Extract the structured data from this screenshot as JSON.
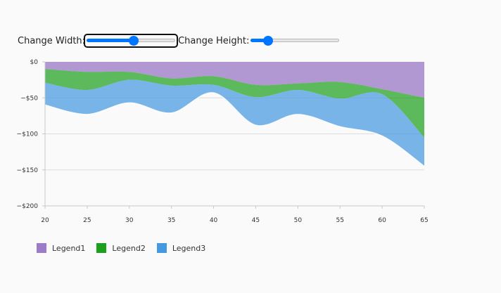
{
  "controls": {
    "width_label": "Change Width:",
    "width_value": 0.53,
    "height_label": "Change Height:",
    "height_value": 0.17
  },
  "colors": {
    "legend1": "#9c7cc6",
    "legend2": "#1ea01e",
    "legend3": "#4599e0"
  },
  "chart_data": {
    "type": "area",
    "stacked": true,
    "x": [
      20,
      25,
      30,
      35,
      40,
      45,
      50,
      55,
      60,
      65
    ],
    "xlim": [
      20,
      65
    ],
    "ylim": [
      -200,
      0
    ],
    "yticks": [
      0,
      -50,
      -100,
      -150,
      -200
    ],
    "ytick_labels": [
      "$0",
      "−$50",
      "−$100",
      "−$150",
      "−$200"
    ],
    "xtick_labels": [
      "20",
      "25",
      "30",
      "35",
      "40",
      "45",
      "50",
      "55",
      "60",
      "65"
    ],
    "grid": "horizontal",
    "legend_position": "bottom-left",
    "series": [
      {
        "name": "Legend1",
        "values": [
          -10,
          -14,
          -14,
          -23,
          -20,
          -32,
          -30,
          -28,
          -38,
          -50
        ]
      },
      {
        "name": "Legend2",
        "values": [
          -19,
          -25,
          -11,
          -10,
          -12,
          -17,
          -9,
          -23,
          -7,
          -55
        ]
      },
      {
        "name": "Legend3",
        "values": [
          -31,
          -34,
          -32,
          -38,
          -11,
          -39,
          -34,
          -39,
          -58,
          -40
        ]
      }
    ]
  }
}
